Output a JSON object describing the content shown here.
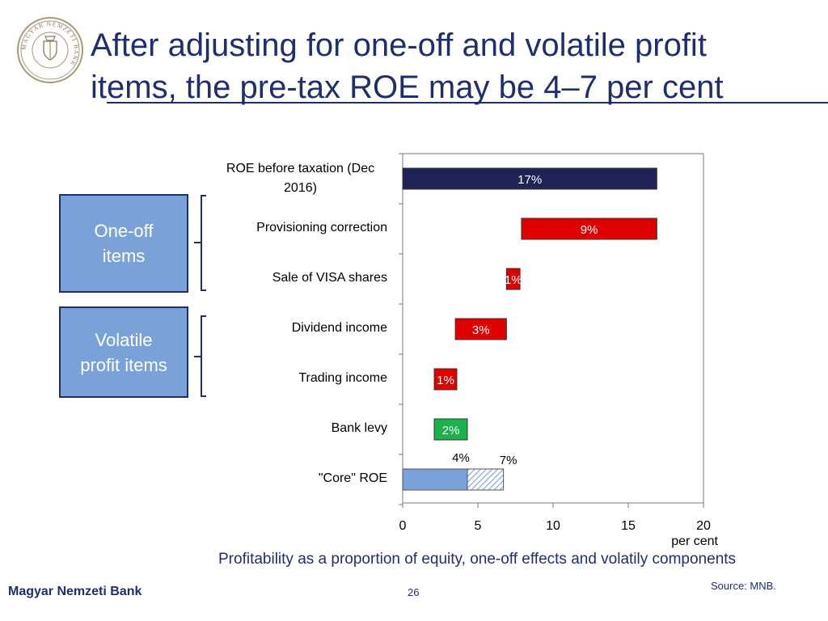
{
  "logo": {
    "text": "MAGYAR NEMZETI BANK",
    "icon": "mnb-seal-icon"
  },
  "title": {
    "line1": "After adjusting for one-off and volatile profit",
    "line2": "items, the pre-tax ROE may be 4–7 per cent"
  },
  "groups": [
    {
      "label": "One-off items"
    },
    {
      "label": "Volatile profit items"
    }
  ],
  "chart_data": {
    "type": "bar",
    "orientation": "horizontal-waterfall",
    "categories": [
      "ROE  before taxation (Dec 2016)",
      "Provisioning correction",
      "Sale of VISA shares",
      "Dividend income",
      "Trading income",
      "Bank levy",
      "\"Core\" ROE"
    ],
    "bars": [
      {
        "start": 0,
        "end": 16.9,
        "label": "17%",
        "color": "#1f2355"
      },
      {
        "start": 7.9,
        "end": 16.9,
        "label": "9%",
        "color": "#e00000"
      },
      {
        "start": 6.9,
        "end": 7.8,
        "label": "1%",
        "color": "#e00000"
      },
      {
        "start": 3.5,
        "end": 6.9,
        "label": "3%",
        "color": "#e00000"
      },
      {
        "start": 2.1,
        "end": 3.6,
        "label": "1%",
        "color": "#e00000"
      },
      {
        "start": 2.1,
        "end": 4.3,
        "label": "2%",
        "color": "#1cb04f"
      }
    ],
    "core": {
      "solid": {
        "start": 0,
        "end": 4.3,
        "label": "4%",
        "color": "#7aa2d9"
      },
      "hatched": {
        "start": 4.3,
        "end": 6.7,
        "label": "7%",
        "color": "#7aa2d9"
      }
    },
    "xlim": [
      0,
      20
    ],
    "xticks": [
      0,
      5,
      10,
      15,
      20
    ],
    "xlabel": "per cent",
    "grid": false
  },
  "subtitle": "Profitability as a proportion of equity, one-off effects and volatily components",
  "source": "Source: MNB.",
  "footer": {
    "bank": "Magyar Nemzeti Bank",
    "page": "26"
  }
}
